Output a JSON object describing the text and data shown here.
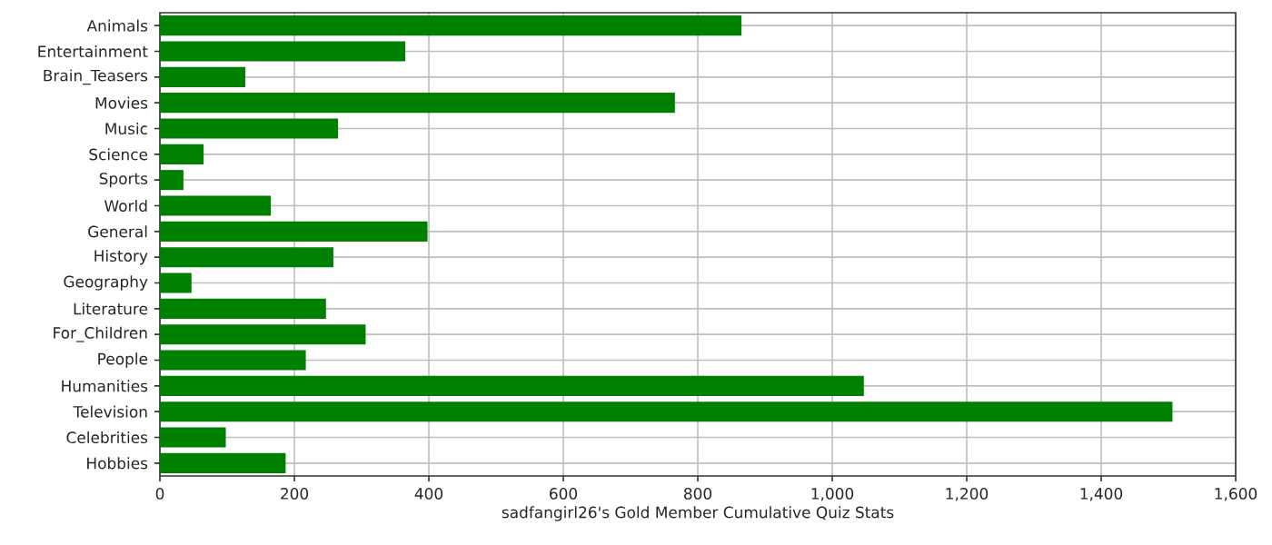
{
  "chart_data": {
    "type": "bar",
    "orientation": "horizontal",
    "xlabel": "sadfangirl26's Gold Member Cumulative Quiz Stats",
    "categories": [
      "Animals",
      "Entertainment",
      "Brain_Teasers",
      "Movies",
      "Music",
      "Science",
      "Sports",
      "World",
      "General",
      "History",
      "Geography",
      "Literature",
      "For_Children",
      "People",
      "Humanities",
      "Television",
      "Celebrities",
      "Hobbies"
    ],
    "values": [
      865,
      365,
      127,
      766,
      265,
      65,
      35,
      165,
      398,
      258,
      47,
      247,
      306,
      217,
      1047,
      1506,
      98,
      187
    ],
    "color": "#008000",
    "xlim": [
      0,
      1600
    ],
    "xticks": [
      0,
      200,
      400,
      600,
      800,
      {
        "value": 1000,
        "label": "1,000"
      },
      {
        "value": 1200,
        "label": "1,200"
      },
      {
        "value": 1400,
        "label": "1,400"
      },
      {
        "value": 1600,
        "label": "1,600"
      }
    ],
    "grid": true
  }
}
